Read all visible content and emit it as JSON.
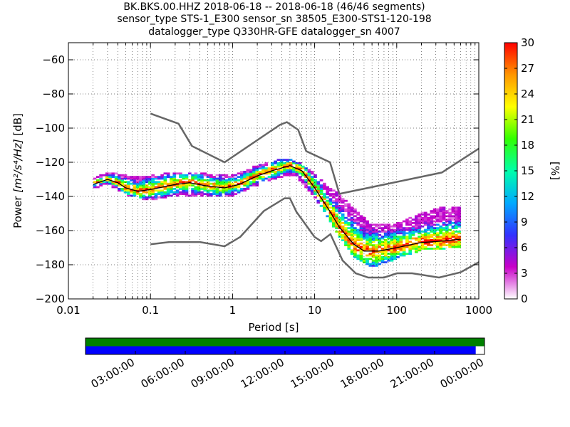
{
  "title_lines": [
    "BK.BKS.00.HHZ   2018-06-18 -- 2018-06-18  (46/46 segments)",
    "sensor_type STS-1_E300 sensor_sn 38505_E300-STS1-120-198",
    "datalogger_type Q330HR-GFE datalogger_sn 4007"
  ],
  "chart_data": {
    "type": "heatmap",
    "xlabel": "Period [s]",
    "ylabel_prefix": "Power ",
    "ylabel_units": "[m²/s⁴/Hz]",
    "ylabel_suffix": " [dB]",
    "x_scale": "log",
    "xlim": [
      0.01,
      1000
    ],
    "ylim": [
      -200,
      -50
    ],
    "x_ticks": [
      0.01,
      0.1,
      1,
      10,
      100,
      1000
    ],
    "x_tick_labels": [
      "0.01",
      "0.1",
      "1",
      "10",
      "100",
      "1000"
    ],
    "y_ticks": [
      -200,
      -180,
      -160,
      -140,
      -120,
      -100,
      -80,
      -60
    ],
    "y_tick_labels": [
      "−200",
      "−180",
      "−160",
      "−140",
      "−120",
      "−100",
      "−80",
      "−60"
    ],
    "grid": true,
    "colorbar": {
      "label": "[%]",
      "range": [
        0,
        30
      ],
      "ticks": [
        0,
        3,
        6,
        9,
        12,
        15,
        18,
        21,
        24,
        27,
        30
      ],
      "colors": [
        "#ffffff",
        "#c800c8",
        "#3232ff",
        "#00aaff",
        "#00ffaa",
        "#32ff00",
        "#ffff00",
        "#ff9600",
        "#ff0000"
      ]
    },
    "high_noise_model": [
      {
        "period": 0.1,
        "db": -91.5
      },
      {
        "period": 0.22,
        "db": -97.4
      },
      {
        "period": 0.32,
        "db": -110.5
      },
      {
        "period": 0.8,
        "db": -120.0
      },
      {
        "period": 3.8,
        "db": -98.0
      },
      {
        "period": 4.6,
        "db": -96.5
      },
      {
        "period": 6.3,
        "db": -101.0
      },
      {
        "period": 7.9,
        "db": -113.5
      },
      {
        "period": 15.4,
        "db": -120.0
      },
      {
        "period": 20.0,
        "db": -138.5
      },
      {
        "period": 354.8,
        "db": -126.0
      },
      {
        "period": 1000,
        "db": -112.0
      }
    ],
    "low_noise_model": [
      {
        "period": 0.1,
        "db": -168.0
      },
      {
        "period": 0.17,
        "db": -166.7
      },
      {
        "period": 0.4,
        "db": -166.7
      },
      {
        "period": 0.8,
        "db": -169.2
      },
      {
        "period": 1.24,
        "db": -163.7
      },
      {
        "period": 2.4,
        "db": -148.6
      },
      {
        "period": 4.3,
        "db": -141.1
      },
      {
        "period": 5.0,
        "db": -141.1
      },
      {
        "period": 6.0,
        "db": -149.0
      },
      {
        "period": 10.0,
        "db": -163.8
      },
      {
        "period": 12.0,
        "db": -166.2
      },
      {
        "period": 15.6,
        "db": -162.1
      },
      {
        "period": 21.9,
        "db": -177.5
      },
      {
        "period": 31.6,
        "db": -185.0
      },
      {
        "period": 45.0,
        "db": -187.5
      },
      {
        "period": 70.0,
        "db": -187.5
      },
      {
        "period": 101.0,
        "db": -185.0
      },
      {
        "period": 154.0,
        "db": -185.0
      },
      {
        "period": 328.0,
        "db": -187.5
      },
      {
        "period": 600.0,
        "db": -184.4
      },
      {
        "period": 1000,
        "db": -178.5
      }
    ],
    "mean_psd": [
      {
        "period": 0.02,
        "db": -133
      },
      {
        "period": 0.03,
        "db": -130
      },
      {
        "period": 0.04,
        "db": -132
      },
      {
        "period": 0.05,
        "db": -135
      },
      {
        "period": 0.07,
        "db": -137
      },
      {
        "period": 0.1,
        "db": -136
      },
      {
        "period": 0.2,
        "db": -133
      },
      {
        "period": 0.3,
        "db": -132
      },
      {
        "period": 0.5,
        "db": -134
      },
      {
        "period": 0.8,
        "db": -135
      },
      {
        "period": 1.2,
        "db": -133
      },
      {
        "period": 2,
        "db": -128
      },
      {
        "period": 3,
        "db": -125
      },
      {
        "period": 5,
        "db": -122
      },
      {
        "period": 7,
        "db": -125
      },
      {
        "period": 10,
        "db": -135
      },
      {
        "period": 15,
        "db": -148
      },
      {
        "period": 20,
        "db": -158
      },
      {
        "period": 30,
        "db": -168
      },
      {
        "period": 40,
        "db": -172
      },
      {
        "period": 60,
        "db": -172
      },
      {
        "period": 100,
        "db": -170
      },
      {
        "period": 200,
        "db": -167
      },
      {
        "period": 400,
        "db": -166
      },
      {
        "period": 600,
        "db": -165
      }
    ],
    "spread": [
      {
        "period": 0.02,
        "lo": -135,
        "hi": -131
      },
      {
        "period": 0.03,
        "lo": -132,
        "hi": -127
      },
      {
        "period": 0.05,
        "lo": -139,
        "hi": -129
      },
      {
        "period": 0.1,
        "lo": -142,
        "hi": -129
      },
      {
        "period": 0.2,
        "lo": -139,
        "hi": -127
      },
      {
        "period": 0.5,
        "lo": -140,
        "hi": -128
      },
      {
        "period": 1,
        "lo": -139,
        "hi": -129
      },
      {
        "period": 2,
        "lo": -133,
        "hi": -123
      },
      {
        "period": 4,
        "lo": -128,
        "hi": -119
      },
      {
        "period": 6,
        "lo": -128,
        "hi": -120
      },
      {
        "period": 10,
        "lo": -140,
        "hi": -128
      },
      {
        "period": 15,
        "lo": -153,
        "hi": -136
      },
      {
        "period": 20,
        "lo": -163,
        "hi": -140
      },
      {
        "period": 30,
        "lo": -175,
        "hi": -148
      },
      {
        "period": 50,
        "lo": -181,
        "hi": -158
      },
      {
        "period": 100,
        "lo": -176,
        "hi": -157
      },
      {
        "period": 200,
        "lo": -171,
        "hi": -151
      },
      {
        "period": 400,
        "lo": -170,
        "hi": -147
      },
      {
        "period": 600,
        "lo": -169,
        "hi": -147
      }
    ],
    "timeline": {
      "tick_labels": [
        "03:00:00",
        "06:00:00",
        "09:00:00",
        "12:00:00",
        "15:00:00",
        "18:00:00",
        "21:00:00",
        "00:00:00"
      ],
      "data_coverage_fraction": 1.0,
      "psd_coverage_fraction": 0.978,
      "data_color": "#008000",
      "psd_color": "#0000ff"
    }
  }
}
